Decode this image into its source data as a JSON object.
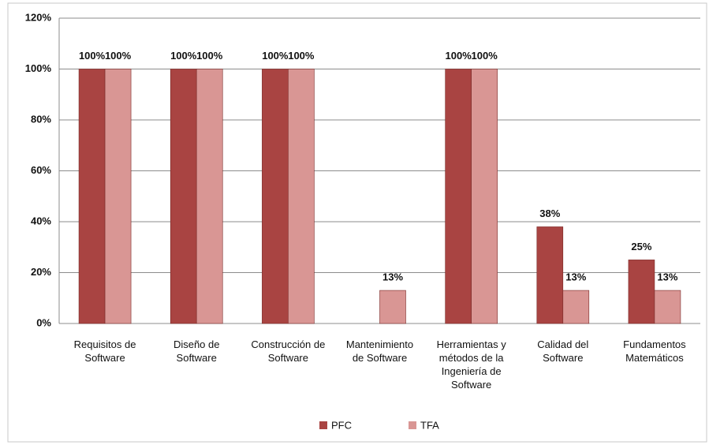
{
  "chart_data": {
    "type": "bar",
    "categories": [
      "Requisitos de Software",
      "Diseño de Software",
      "Construcción de Software",
      "Mantenimiento de Software",
      "Herramientas y métodos de la Ingeniería de Software",
      "Calidad del Software",
      "Fundamentos Matemáticos"
    ],
    "series": [
      {
        "name": "PFC",
        "color": "#a94442",
        "values": [
          100,
          100,
          100,
          null,
          100,
          38,
          25
        ],
        "value_labels": [
          "100%",
          "100%",
          "100%",
          null,
          "100%",
          "38%",
          "25%"
        ]
      },
      {
        "name": "TFA",
        "color": "#d99694",
        "values": [
          100,
          100,
          100,
          13,
          100,
          13,
          13
        ],
        "value_labels": [
          "100%",
          "100%",
          "100%",
          "13%",
          "100%",
          "13%",
          "13%"
        ]
      }
    ],
    "ylim": [
      0,
      120
    ],
    "yticks": [
      {
        "value": 0,
        "label": "0%"
      },
      {
        "value": 20,
        "label": "20%"
      },
      {
        "value": 40,
        "label": "40%"
      },
      {
        "value": 60,
        "label": "60%"
      },
      {
        "value": 80,
        "label": "80%"
      },
      {
        "value": 100,
        "label": "100%"
      },
      {
        "value": 120,
        "label": "120%"
      }
    ],
    "grid": true,
    "legend": "bottom"
  }
}
